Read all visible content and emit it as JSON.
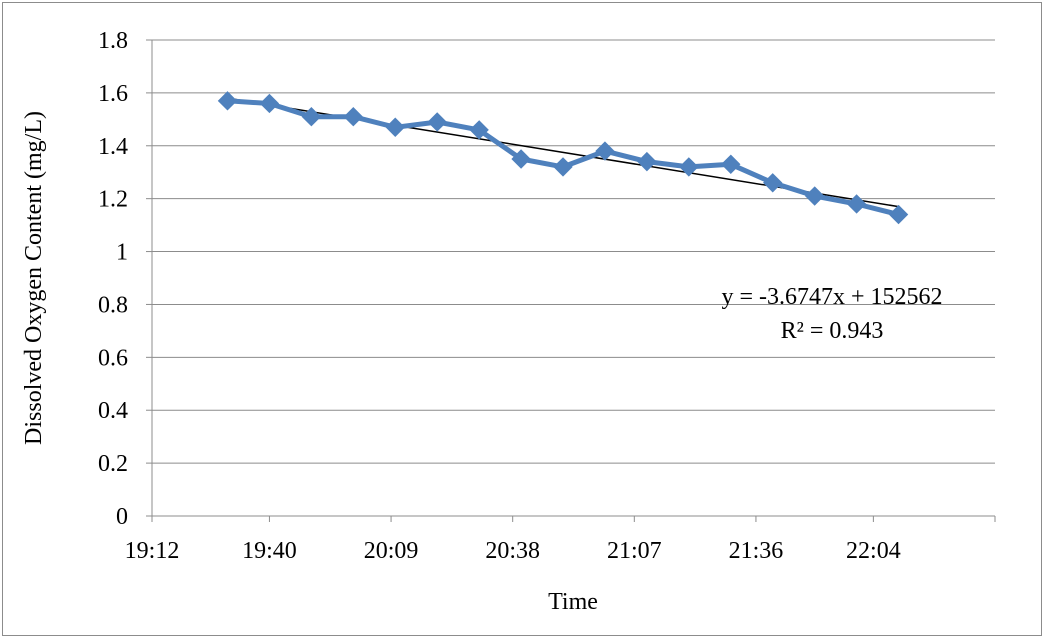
{
  "chart_data": {
    "type": "line",
    "xlabel": "Time",
    "ylabel": "Dissolved Oxygen Content (mg/L)",
    "ylim": [
      0,
      1.8
    ],
    "y_ticks": [
      "0",
      "0.2",
      "0.4",
      "0.6",
      "0.8",
      "1",
      "1.2",
      "1.4",
      "1.6",
      "1.8"
    ],
    "xlim": [
      "19:12",
      "22:33"
    ],
    "x_ticks": [
      "19:12",
      "19:40",
      "20:09",
      "20:38",
      "21:07",
      "21:36",
      "22:04"
    ],
    "grid": "horizontal",
    "series": [
      {
        "x": [
          "19:30",
          "19:40",
          "19:50",
          "20:00",
          "20:10",
          "20:20",
          "20:30",
          "20:40",
          "20:50",
          "21:00",
          "21:10",
          "21:20",
          "21:30",
          "21:40",
          "21:50",
          "22:00",
          "22:10"
        ],
        "values": [
          1.57,
          1.56,
          1.51,
          1.51,
          1.47,
          1.49,
          1.46,
          1.35,
          1.32,
          1.38,
          1.34,
          1.32,
          1.33,
          1.26,
          1.21,
          1.18,
          1.14
        ],
        "color": "#4F81BD",
        "marker": "diamond"
      }
    ],
    "trendline": {
      "type": "linear",
      "equation": "y = -3.6747x + 152562",
      "r2_label": "R² = 0.943",
      "start": [
        "19:30",
        1.58
      ],
      "end": [
        "22:10",
        1.17
      ],
      "color": "#000000"
    }
  }
}
